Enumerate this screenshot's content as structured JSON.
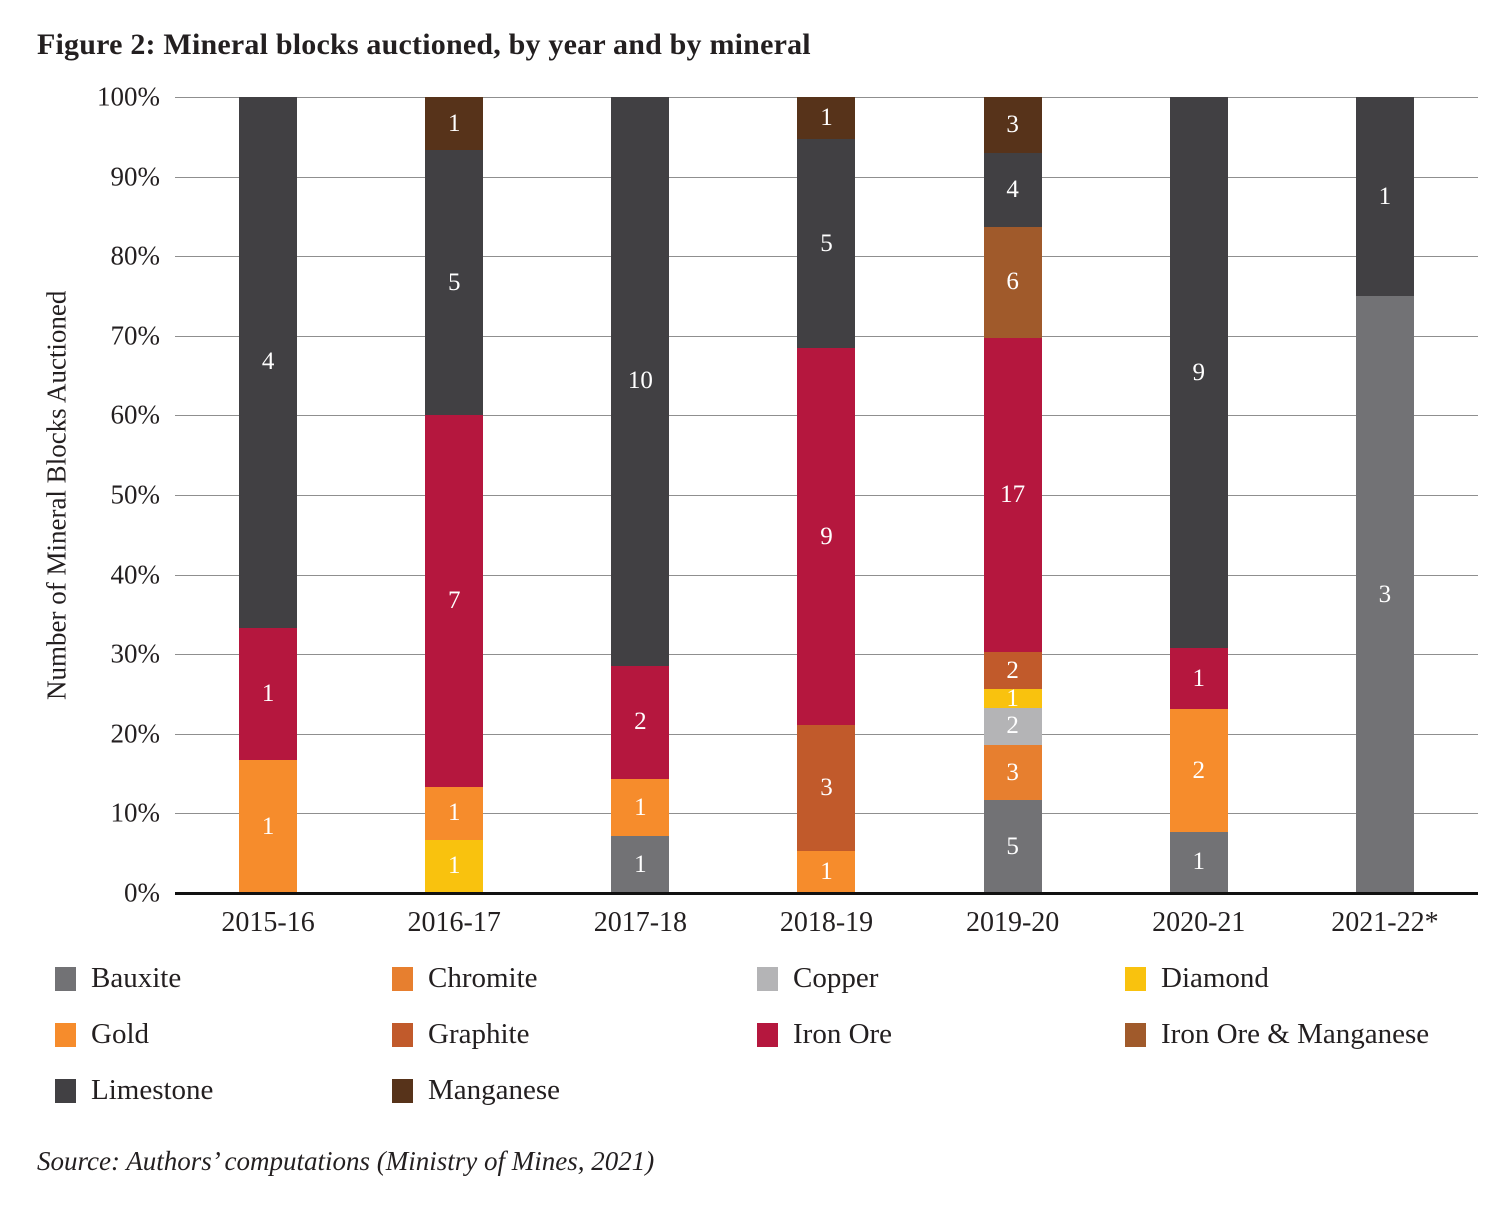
{
  "figure": {
    "title": "Figure 2: Mineral blocks auctioned, by year and by mineral",
    "source": "Source: Authors’ computations (Ministry of Mines, 2021)"
  },
  "chart_data": {
    "type": "bar",
    "variant": "100%-stacked-vertical",
    "title": "Figure 2: Mineral blocks auctioned, by year and by mineral",
    "xlabel": "",
    "ylabel": "Number of Mineral Blocks Auctioned",
    "ylim": [
      0,
      100
    ],
    "yticks": [
      "0%",
      "10%",
      "20%",
      "30%",
      "40%",
      "50%",
      "60%",
      "70%",
      "80%",
      "90%",
      "100%"
    ],
    "grid": "horizontal",
    "legend_position": "bottom",
    "legend_columns": 4,
    "categories": [
      "2015-16",
      "2016-17",
      "2017-18",
      "2018-19",
      "2019-20",
      "2020-21",
      "2021-22*"
    ],
    "category_totals": [
      6,
      15,
      14,
      19,
      43,
      13,
      4
    ],
    "stack_order_note": "series listed bottom-to-top of each bar; values are block counts shown as white data labels",
    "series": [
      {
        "name": "Bauxite",
        "color": "#727275",
        "values": [
          0,
          0,
          1,
          0,
          5,
          1,
          3
        ]
      },
      {
        "name": "Chromite",
        "color": "#E77F2F",
        "values": [
          0,
          0,
          0,
          0,
          3,
          0,
          0
        ]
      },
      {
        "name": "Copper",
        "color": "#B4B4B6",
        "values": [
          0,
          0,
          0,
          0,
          2,
          0,
          0
        ]
      },
      {
        "name": "Diamond",
        "color": "#F9C20E",
        "values": [
          0,
          1,
          0,
          0,
          1,
          0,
          0
        ]
      },
      {
        "name": "Gold",
        "color": "#F68C2C",
        "values": [
          1,
          1,
          1,
          1,
          0,
          2,
          0
        ]
      },
      {
        "name": "Graphite",
        "color": "#C15A2B",
        "values": [
          0,
          0,
          0,
          3,
          2,
          0,
          0
        ]
      },
      {
        "name": "Iron Ore",
        "color": "#B5173E",
        "values": [
          1,
          7,
          2,
          9,
          17,
          1,
          0
        ]
      },
      {
        "name": "Iron Ore & Manganese",
        "color": "#A05A2B",
        "values": [
          0,
          0,
          0,
          0,
          6,
          0,
          0
        ]
      },
      {
        "name": "Limestone",
        "color": "#414043",
        "values": [
          4,
          5,
          10,
          5,
          4,
          9,
          1
        ]
      },
      {
        "name": "Manganese",
        "color": "#57331A",
        "values": [
          0,
          1,
          0,
          1,
          3,
          0,
          0
        ]
      }
    ]
  }
}
